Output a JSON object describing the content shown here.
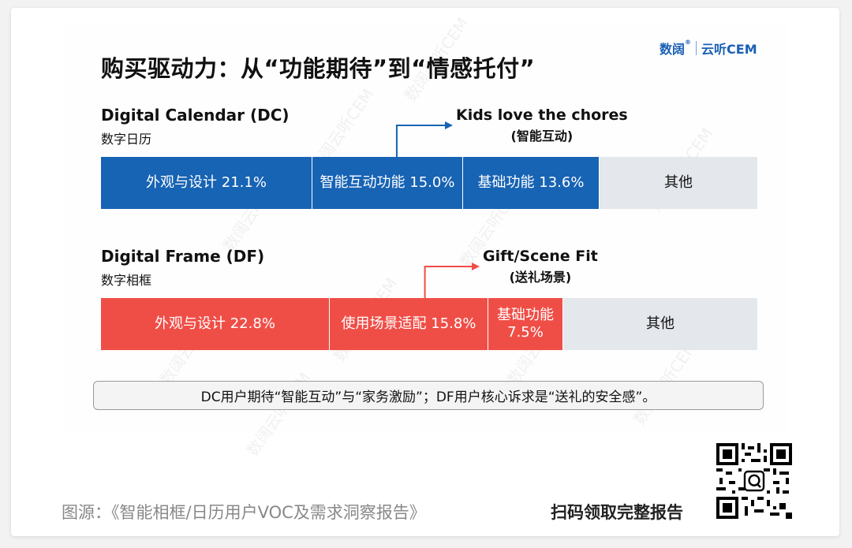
{
  "brand": {
    "logo_text": "数阔",
    "registered": "®",
    "product": "云听CEM"
  },
  "title": "购买驱动力：从“功能期待”到“情感托付”",
  "chart_data": [
    {
      "type": "bar",
      "orientation": "horizontal-stacked",
      "name": "Digital Calendar (DC)",
      "subtitle": "数字日历",
      "color": "#1763b4",
      "other_color": "#e4e7ec",
      "segments": [
        {
          "label": "外观与设计 21.1%",
          "value": 21.1
        },
        {
          "label": "智能互动功能 15.0%",
          "value": 15.0
        },
        {
          "label": "基础功能 13.6%",
          "value": 13.6
        },
        {
          "label": "其他",
          "value": null,
          "other": true
        }
      ],
      "callout": {
        "line1": "Kids love the chores",
        "line2": "(智能互动)",
        "target_segment": 1
      }
    },
    {
      "type": "bar",
      "orientation": "horizontal-stacked",
      "name": "Digital Frame (DF)",
      "subtitle": "数字相框",
      "color": "#ef4e47",
      "other_color": "#e4e7ec",
      "segments": [
        {
          "label": "外观与设计 22.8%",
          "value": 22.8
        },
        {
          "label": "使用场景适配 15.8%",
          "value": 15.8
        },
        {
          "label": "基础功能\n7.5%",
          "value": 7.5
        },
        {
          "label": "其他",
          "value": null,
          "other": true
        }
      ],
      "callout": {
        "line1": "Gift/Scene Fit",
        "line2": "(送礼场景)",
        "target_segment": 1
      }
    }
  ],
  "summary": "DC用户期待“智能互动”与“家务激励”；DF用户核心诉求是“送礼的安全感”。",
  "watermark": "数阔云听CEM",
  "footer": {
    "source": "图源：《智能相框/日历用户VOC及需求洞察报告》",
    "scan": "扫码领取完整报告"
  }
}
